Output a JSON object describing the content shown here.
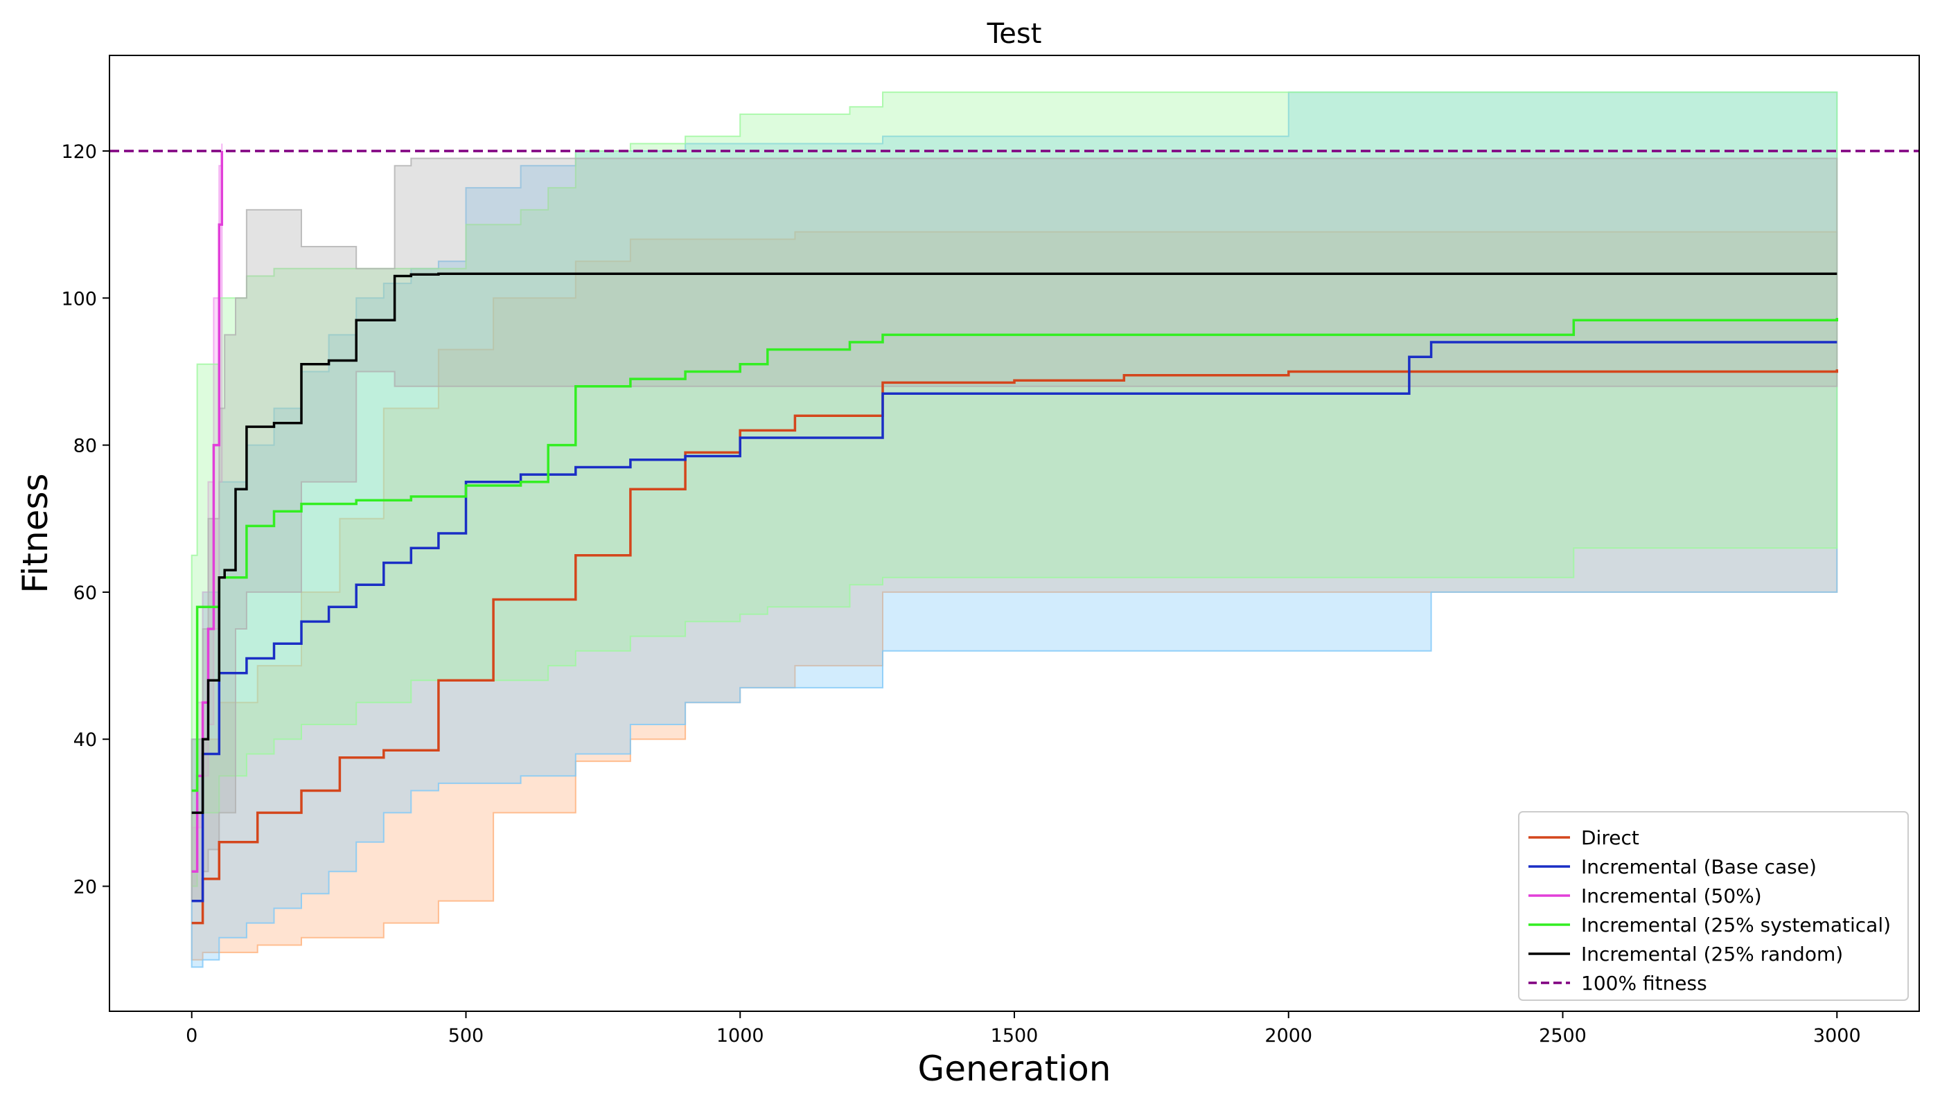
{
  "chart_data": {
    "type": "line",
    "title": "Test",
    "xlabel": "Generation",
    "ylabel": "Fitness",
    "xlim": [
      -150,
      3150
    ],
    "ylim": [
      3,
      133
    ],
    "xticks": [
      0,
      500,
      1000,
      1500,
      2000,
      2500,
      3000
    ],
    "yticks": [
      20,
      40,
      60,
      80,
      100,
      120
    ],
    "grid": false,
    "legend": {
      "placement": "bottom-right"
    },
    "reference_line": {
      "name": "100% fitness",
      "y": 120,
      "color": "#800080",
      "style": "dashed"
    },
    "series": [
      {
        "name": "Direct",
        "color": "#d4461c",
        "band_color": "#ffb07a",
        "x": [
          0,
          20,
          50,
          120,
          200,
          270,
          350,
          450,
          550,
          700,
          800,
          900,
          1000,
          1100,
          1260,
          1500,
          1700,
          2000,
          2500,
          3000
        ],
        "mean": [
          15,
          21,
          26,
          30,
          33,
          37.5,
          38.5,
          48,
          59,
          65,
          74,
          79,
          82,
          84,
          88.5,
          88.8,
          89.5,
          90,
          90,
          90.3
        ],
        "low": [
          10,
          11,
          11,
          12,
          13,
          13,
          15,
          18,
          30,
          37,
          40,
          45,
          47,
          50,
          60,
          60,
          60,
          60,
          60,
          60
        ],
        "high": [
          30,
          40,
          45,
          50,
          60,
          70,
          85,
          93,
          100,
          105,
          108,
          108,
          108,
          109,
          109,
          109,
          109,
          109,
          109,
          109
        ]
      },
      {
        "name": "Incremental (Base case)",
        "color": "#1a2ec5",
        "band_color": "#7ec8f8",
        "x": [
          0,
          20,
          50,
          100,
          150,
          200,
          250,
          300,
          350,
          400,
          450,
          500,
          600,
          700,
          800,
          900,
          1000,
          1100,
          1260,
          1500,
          2000,
          2220,
          2260,
          2500,
          3000
        ],
        "mean": [
          18,
          38,
          49,
          51,
          53,
          56,
          58,
          61,
          64,
          66,
          68,
          75,
          76,
          77,
          78,
          78.5,
          81,
          81,
          87,
          87,
          87,
          92,
          94,
          94,
          94
        ],
        "low": [
          9,
          10,
          13,
          15,
          17,
          19,
          22,
          26,
          30,
          33,
          34,
          34,
          35,
          38,
          42,
          45,
          47,
          47,
          52,
          52,
          52,
          52,
          60,
          60,
          60
        ],
        "high": [
          40,
          60,
          75,
          80,
          85,
          90,
          95,
          100,
          102,
          104,
          105,
          115,
          118,
          120,
          120,
          121,
          121,
          121,
          122,
          122,
          128,
          128,
          128,
          128,
          128
        ]
      },
      {
        "name": "Incremental (50%)",
        "color": "#e23fd9",
        "band_color": "#f29cf0",
        "x": [
          0,
          10,
          20,
          30,
          40,
          50,
          55
        ],
        "mean": [
          22,
          35,
          45,
          55,
          80,
          110,
          120
        ],
        "low": [
          20,
          28,
          35,
          42,
          55,
          75,
          100
        ],
        "high": [
          28,
          45,
          60,
          75,
          100,
          118,
          121
        ]
      },
      {
        "name": "Incremental (25% systematical)",
        "color": "#33ee22",
        "band_color": "#9ef79e",
        "x": [
          0,
          10,
          50,
          100,
          150,
          200,
          300,
          400,
          500,
          600,
          650,
          700,
          800,
          900,
          1000,
          1050,
          1200,
          1260,
          1500,
          2000,
          2500,
          2520,
          3000
        ],
        "mean": [
          33,
          58,
          62,
          69,
          71,
          72,
          72.5,
          73,
          74.5,
          75,
          80,
          88,
          89,
          90,
          91,
          93,
          94,
          95,
          95,
          95,
          95,
          97,
          97.3
        ],
        "low": [
          20,
          30,
          35,
          38,
          40,
          42,
          45,
          48,
          48,
          48,
          50,
          52,
          54,
          56,
          57,
          58,
          61,
          62,
          62,
          62,
          62,
          66,
          71
        ],
        "high": [
          65,
          91,
          100,
          103,
          104,
          104,
          104,
          104,
          110,
          112,
          115,
          120,
          121,
          122,
          125,
          125,
          126,
          128,
          128,
          128,
          128,
          128,
          128
        ]
      },
      {
        "name": "Incremental (25% random)",
        "color": "#000000",
        "band_color": "#b0b0b0",
        "x": [
          0,
          20,
          30,
          50,
          60,
          80,
          100,
          150,
          200,
          250,
          300,
          370,
          400,
          450,
          1000,
          1500,
          2000,
          2500,
          3000
        ],
        "mean": [
          30,
          40,
          48,
          62,
          63,
          74,
          82.5,
          83,
          91,
          91.5,
          97,
          103,
          103.2,
          103.3,
          103.3,
          103.3,
          103.3,
          103.3,
          103.3
        ],
        "low": [
          18,
          22,
          25,
          30,
          30,
          55,
          60,
          60,
          75,
          75,
          90,
          88,
          88,
          88,
          88,
          88,
          88,
          88,
          88
        ],
        "high": [
          40,
          55,
          70,
          85,
          95,
          100,
          112,
          112,
          107,
          107,
          104,
          118,
          119,
          119,
          119,
          119,
          119,
          119,
          119
        ]
      }
    ]
  }
}
